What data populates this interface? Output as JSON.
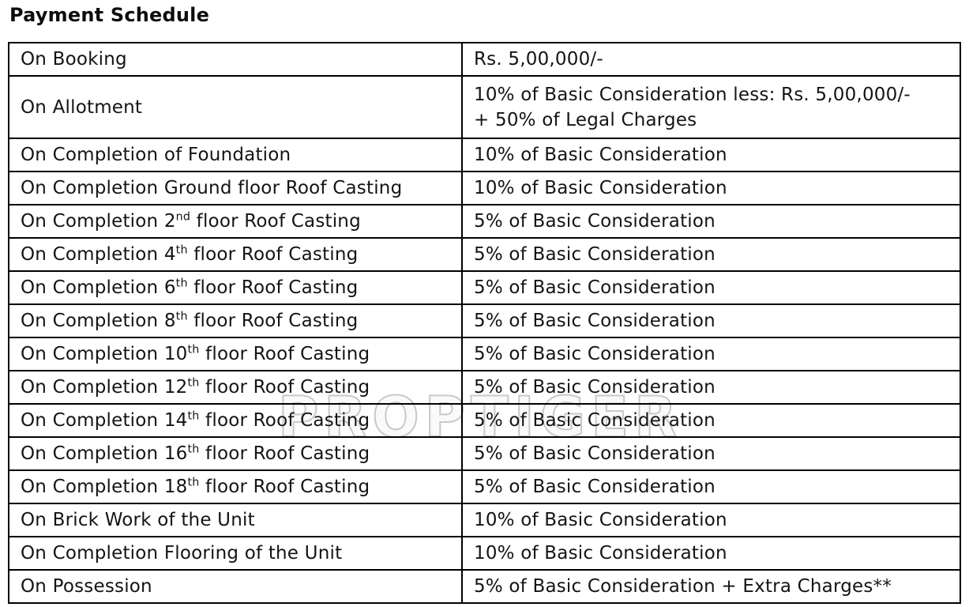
{
  "page": {
    "title": "Payment Schedule"
  },
  "watermark": {
    "text": "PROPTIGER",
    "color": "#c9c9c9"
  },
  "table": {
    "columns": [
      "milestone",
      "amount"
    ],
    "rows": [
      {
        "label": [
          {
            "t": "On Booking"
          }
        ],
        "value": [
          "Rs. 5,00,000/-"
        ]
      },
      {
        "label": [
          {
            "t": "On Allotment"
          }
        ],
        "value": [
          "10% of Basic Consideration less: Rs. 5,00,000/-",
          "+ 50% of Legal Charges"
        ]
      },
      {
        "label": [
          {
            "t": "On Completion of Foundation"
          }
        ],
        "value": [
          "10% of Basic Consideration"
        ]
      },
      {
        "label": [
          {
            "t": "On Completion Ground floor Roof Casting"
          }
        ],
        "value": [
          "10% of Basic Consideration"
        ]
      },
      {
        "label": [
          {
            "t": "On Completion 2"
          },
          {
            "t": "nd",
            "sup": true
          },
          {
            "t": " floor Roof Casting"
          }
        ],
        "value": [
          "5% of Basic Consideration"
        ]
      },
      {
        "label": [
          {
            "t": "On Completion 4"
          },
          {
            "t": "th",
            "sup": true
          },
          {
            "t": " floor Roof Casting"
          }
        ],
        "value": [
          "5% of Basic Consideration"
        ]
      },
      {
        "label": [
          {
            "t": "On Completion 6"
          },
          {
            "t": "th",
            "sup": true
          },
          {
            "t": " floor Roof Casting"
          }
        ],
        "value": [
          "5% of Basic Consideration"
        ]
      },
      {
        "label": [
          {
            "t": "On Completion 8"
          },
          {
            "t": "th",
            "sup": true
          },
          {
            "t": " floor Roof Casting"
          }
        ],
        "value": [
          "5% of Basic Consideration"
        ]
      },
      {
        "label": [
          {
            "t": "On Completion 10"
          },
          {
            "t": "th",
            "sup": true
          },
          {
            "t": " floor Roof Casting"
          }
        ],
        "value": [
          "5% of Basic Consideration"
        ]
      },
      {
        "label": [
          {
            "t": "On Completion 12"
          },
          {
            "t": "th",
            "sup": true
          },
          {
            "t": " floor Roof Casting"
          }
        ],
        "value": [
          "5% of Basic Consideration"
        ]
      },
      {
        "label": [
          {
            "t": "On Completion 14"
          },
          {
            "t": "th",
            "sup": true
          },
          {
            "t": " floor Roof Casting"
          }
        ],
        "value": [
          "5% of Basic Consideration"
        ]
      },
      {
        "label": [
          {
            "t": "On Completion 16"
          },
          {
            "t": "th",
            "sup": true
          },
          {
            "t": " floor Roof Casting"
          }
        ],
        "value": [
          "5% of Basic Consideration"
        ]
      },
      {
        "label": [
          {
            "t": "On Completion 18"
          },
          {
            "t": "th",
            "sup": true
          },
          {
            "t": " floor Roof Casting"
          }
        ],
        "value": [
          "5% of Basic Consideration"
        ]
      },
      {
        "label": [
          {
            "t": "On Brick Work of the Unit"
          }
        ],
        "value": [
          "10% of Basic Consideration"
        ]
      },
      {
        "label": [
          {
            "t": "On Completion Flooring of the Unit"
          }
        ],
        "value": [
          "10% of Basic Consideration"
        ]
      },
      {
        "label": [
          {
            "t": "On Possession"
          }
        ],
        "value": [
          "5% of Basic Consideration + Extra Charges**"
        ]
      }
    ]
  }
}
